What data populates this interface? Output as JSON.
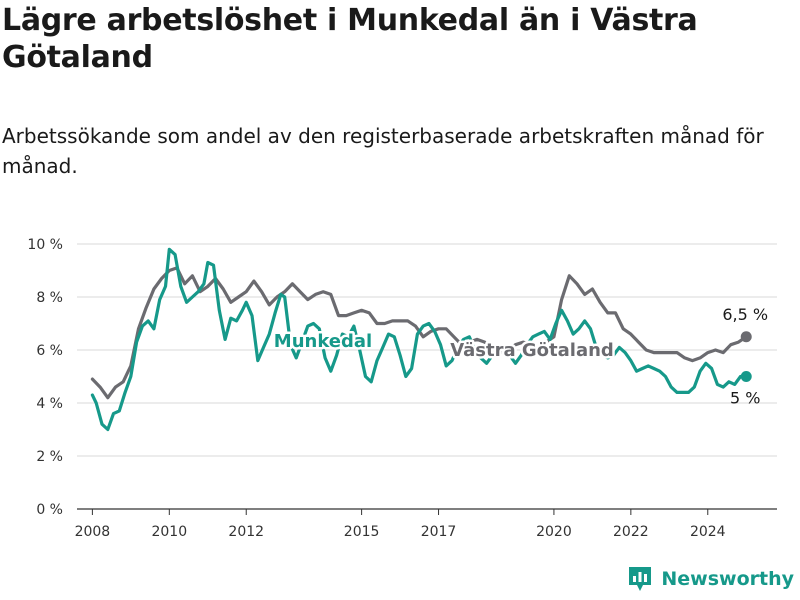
{
  "title": "Lägre arbetslöshet i Munkedal än i Västra Götaland",
  "subtitle": "Arbetssökande som andel av den registerbaserade arbetskraften månad för månad.",
  "brand": "Newsworthy",
  "colors": {
    "munkedal": "#16998a",
    "vg": "#6b6b70",
    "grid": "#d9d9d9",
    "axis": "#333333"
  },
  "chart_data": {
    "type": "line",
    "title": "Lägre arbetslöshet i Munkedal än i Västra Götaland",
    "subtitle": "Arbetssökande som andel av den registerbaserade arbetskraften månad för månad.",
    "xlabel": "",
    "ylabel": "",
    "ylim": [
      0,
      10
    ],
    "xlim": [
      2007.6,
      2025.8
    ],
    "grid": true,
    "y_ticks": [
      {
        "value": 0,
        "label": "0 %"
      },
      {
        "value": 2,
        "label": "2 %"
      },
      {
        "value": 4,
        "label": "4 %"
      },
      {
        "value": 6,
        "label": "6 %"
      },
      {
        "value": 8,
        "label": "8 %"
      },
      {
        "value": 10,
        "label": "10 %"
      }
    ],
    "x_ticks": [
      {
        "value": 2008,
        "label": "2008"
      },
      {
        "value": 2010,
        "label": "2010"
      },
      {
        "value": 2012,
        "label": "2012"
      },
      {
        "value": 2015,
        "label": "2015"
      },
      {
        "value": 2017,
        "label": "2017"
      },
      {
        "value": 2020,
        "label": "2020"
      },
      {
        "value": 2022,
        "label": "2022"
      },
      {
        "value": 2024,
        "label": "2024"
      }
    ],
    "series": [
      {
        "name": "Västra Götaland",
        "end_label": "6,5 %",
        "points": [
          [
            2008.0,
            4.9
          ],
          [
            2008.2,
            4.6
          ],
          [
            2008.4,
            4.2
          ],
          [
            2008.6,
            4.6
          ],
          [
            2008.8,
            4.8
          ],
          [
            2009.0,
            5.4
          ],
          [
            2009.2,
            6.8
          ],
          [
            2009.4,
            7.6
          ],
          [
            2009.6,
            8.3
          ],
          [
            2009.8,
            8.7
          ],
          [
            2010.0,
            9.0
          ],
          [
            2010.2,
            9.1
          ],
          [
            2010.4,
            8.5
          ],
          [
            2010.6,
            8.8
          ],
          [
            2010.8,
            8.2
          ],
          [
            2011.0,
            8.4
          ],
          [
            2011.2,
            8.7
          ],
          [
            2011.4,
            8.3
          ],
          [
            2011.6,
            7.8
          ],
          [
            2011.8,
            8.0
          ],
          [
            2012.0,
            8.2
          ],
          [
            2012.2,
            8.6
          ],
          [
            2012.4,
            8.2
          ],
          [
            2012.6,
            7.7
          ],
          [
            2012.8,
            8.0
          ],
          [
            2013.0,
            8.2
          ],
          [
            2013.2,
            8.5
          ],
          [
            2013.4,
            8.2
          ],
          [
            2013.6,
            7.9
          ],
          [
            2013.8,
            8.1
          ],
          [
            2014.0,
            8.2
          ],
          [
            2014.2,
            8.1
          ],
          [
            2014.4,
            7.3
          ],
          [
            2014.6,
            7.3
          ],
          [
            2014.8,
            7.4
          ],
          [
            2015.0,
            7.5
          ],
          [
            2015.2,
            7.4
          ],
          [
            2015.4,
            7.0
          ],
          [
            2015.6,
            7.0
          ],
          [
            2015.8,
            7.1
          ],
          [
            2016.0,
            7.1
          ],
          [
            2016.2,
            7.1
          ],
          [
            2016.4,
            6.9
          ],
          [
            2016.6,
            6.5
          ],
          [
            2016.8,
            6.7
          ],
          [
            2017.0,
            6.8
          ],
          [
            2017.2,
            6.8
          ],
          [
            2017.4,
            6.5
          ],
          [
            2017.6,
            6.2
          ],
          [
            2017.8,
            6.3
          ],
          [
            2018.0,
            6.4
          ],
          [
            2018.2,
            6.3
          ],
          [
            2018.4,
            6.0
          ],
          [
            2018.6,
            5.9
          ],
          [
            2018.8,
            6.0
          ],
          [
            2019.0,
            6.2
          ],
          [
            2019.2,
            6.3
          ],
          [
            2019.4,
            6.2
          ],
          [
            2019.6,
            6.0
          ],
          [
            2019.8,
            6.3
          ],
          [
            2020.0,
            6.5
          ],
          [
            2020.2,
            7.9
          ],
          [
            2020.4,
            8.8
          ],
          [
            2020.6,
            8.5
          ],
          [
            2020.8,
            8.1
          ],
          [
            2021.0,
            8.3
          ],
          [
            2021.2,
            7.8
          ],
          [
            2021.4,
            7.4
          ],
          [
            2021.6,
            7.4
          ],
          [
            2021.8,
            6.8
          ],
          [
            2022.0,
            6.6
          ],
          [
            2022.2,
            6.3
          ],
          [
            2022.4,
            6.0
          ],
          [
            2022.6,
            5.9
          ],
          [
            2022.8,
            5.9
          ],
          [
            2023.0,
            5.9
          ],
          [
            2023.2,
            5.9
          ],
          [
            2023.4,
            5.7
          ],
          [
            2023.6,
            5.6
          ],
          [
            2023.8,
            5.7
          ],
          [
            2024.0,
            5.9
          ],
          [
            2024.2,
            6.0
          ],
          [
            2024.4,
            5.9
          ],
          [
            2024.6,
            6.2
          ],
          [
            2024.8,
            6.3
          ],
          [
            2025.0,
            6.5
          ]
        ]
      },
      {
        "name": "Munkedal",
        "end_label": "5 %",
        "points": [
          [
            2008.0,
            4.3
          ],
          [
            2008.1,
            4.0
          ],
          [
            2008.25,
            3.2
          ],
          [
            2008.4,
            3.0
          ],
          [
            2008.55,
            3.6
          ],
          [
            2008.7,
            3.7
          ],
          [
            2008.85,
            4.4
          ],
          [
            2009.0,
            5.0
          ],
          [
            2009.15,
            6.3
          ],
          [
            2009.3,
            6.9
          ],
          [
            2009.45,
            7.1
          ],
          [
            2009.6,
            6.8
          ],
          [
            2009.75,
            7.9
          ],
          [
            2009.9,
            8.4
          ],
          [
            2010.0,
            9.8
          ],
          [
            2010.15,
            9.6
          ],
          [
            2010.3,
            8.4
          ],
          [
            2010.45,
            7.8
          ],
          [
            2010.6,
            8.0
          ],
          [
            2010.75,
            8.2
          ],
          [
            2010.9,
            8.5
          ],
          [
            2011.0,
            9.3
          ],
          [
            2011.15,
            9.2
          ],
          [
            2011.3,
            7.5
          ],
          [
            2011.45,
            6.4
          ],
          [
            2011.6,
            7.2
          ],
          [
            2011.75,
            7.1
          ],
          [
            2011.9,
            7.5
          ],
          [
            2012.0,
            7.8
          ],
          [
            2012.15,
            7.3
          ],
          [
            2012.3,
            5.6
          ],
          [
            2012.45,
            6.1
          ],
          [
            2012.6,
            6.6
          ],
          [
            2012.75,
            7.4
          ],
          [
            2012.9,
            8.1
          ],
          [
            2013.0,
            8.0
          ],
          [
            2013.15,
            6.2
          ],
          [
            2013.3,
            5.7
          ],
          [
            2013.45,
            6.3
          ],
          [
            2013.6,
            6.9
          ],
          [
            2013.75,
            7.0
          ],
          [
            2013.9,
            6.8
          ],
          [
            2014.05,
            5.7
          ],
          [
            2014.2,
            5.2
          ],
          [
            2014.35,
            5.8
          ],
          [
            2014.5,
            6.6
          ],
          [
            2014.65,
            6.5
          ],
          [
            2014.8,
            6.9
          ],
          [
            2014.95,
            6.0
          ],
          [
            2015.1,
            5.0
          ],
          [
            2015.25,
            4.8
          ],
          [
            2015.4,
            5.6
          ],
          [
            2015.55,
            6.1
          ],
          [
            2015.7,
            6.6
          ],
          [
            2015.85,
            6.5
          ],
          [
            2016.0,
            5.8
          ],
          [
            2016.15,
            5.0
          ],
          [
            2016.3,
            5.3
          ],
          [
            2016.45,
            6.6
          ],
          [
            2016.6,
            6.9
          ],
          [
            2016.75,
            7.0
          ],
          [
            2016.9,
            6.7
          ],
          [
            2017.05,
            6.2
          ],
          [
            2017.2,
            5.4
          ],
          [
            2017.35,
            5.6
          ],
          [
            2017.5,
            6.1
          ],
          [
            2017.65,
            6.4
          ],
          [
            2017.8,
            6.5
          ],
          [
            2017.95,
            6.0
          ],
          [
            2018.1,
            5.7
          ],
          [
            2018.25,
            5.5
          ],
          [
            2018.4,
            5.8
          ],
          [
            2018.55,
            6.0
          ],
          [
            2018.7,
            6.1
          ],
          [
            2018.85,
            5.8
          ],
          [
            2019.0,
            5.5
          ],
          [
            2019.15,
            5.8
          ],
          [
            2019.3,
            6.2
          ],
          [
            2019.45,
            6.5
          ],
          [
            2019.6,
            6.6
          ],
          [
            2019.75,
            6.7
          ],
          [
            2019.9,
            6.4
          ],
          [
            2020.05,
            7.0
          ],
          [
            2020.2,
            7.5
          ],
          [
            2020.35,
            7.1
          ],
          [
            2020.5,
            6.6
          ],
          [
            2020.65,
            6.8
          ],
          [
            2020.8,
            7.1
          ],
          [
            2020.95,
            6.8
          ],
          [
            2021.1,
            6.1
          ],
          [
            2021.25,
            5.8
          ],
          [
            2021.4,
            5.7
          ],
          [
            2021.55,
            5.8
          ],
          [
            2021.7,
            6.1
          ],
          [
            2021.85,
            5.9
          ],
          [
            2022.0,
            5.6
          ],
          [
            2022.15,
            5.2
          ],
          [
            2022.3,
            5.3
          ],
          [
            2022.45,
            5.4
          ],
          [
            2022.6,
            5.3
          ],
          [
            2022.75,
            5.2
          ],
          [
            2022.9,
            5.0
          ],
          [
            2023.05,
            4.6
          ],
          [
            2023.2,
            4.4
          ],
          [
            2023.35,
            4.4
          ],
          [
            2023.5,
            4.4
          ],
          [
            2023.65,
            4.6
          ],
          [
            2023.8,
            5.2
          ],
          [
            2023.95,
            5.5
          ],
          [
            2024.1,
            5.3
          ],
          [
            2024.25,
            4.7
          ],
          [
            2024.4,
            4.6
          ],
          [
            2024.55,
            4.8
          ],
          [
            2024.7,
            4.7
          ],
          [
            2024.85,
            5.0
          ],
          [
            2025.0,
            5.0
          ]
        ]
      }
    ]
  }
}
